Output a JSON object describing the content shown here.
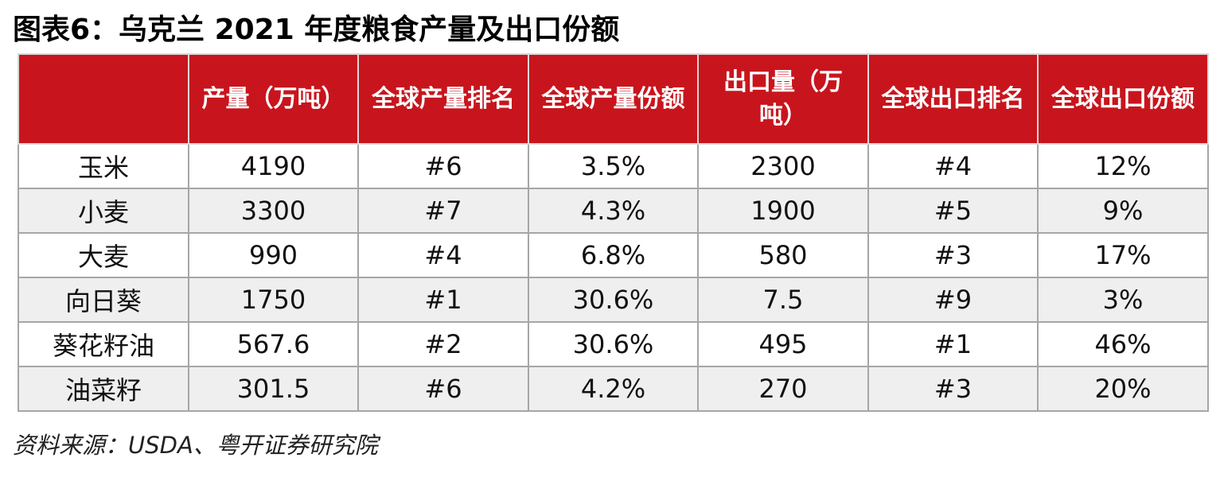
{
  "title": "图表6：乌克兰 2021 年度粮食产量及出口份额",
  "table": {
    "headers": [
      "",
      "产量（万吨）",
      "全球产量排名",
      "全球产量份额",
      "出口量（万吨）",
      "全球出口排名",
      "全球出口份额"
    ],
    "rows": [
      [
        "玉米",
        "4190",
        "#6",
        "3.5%",
        "2300",
        "#4",
        "12%"
      ],
      [
        "小麦",
        "3300",
        "#7",
        "4.3%",
        "1900",
        "#5",
        "9%"
      ],
      [
        "大麦",
        "990",
        "#4",
        "6.8%",
        "580",
        "#3",
        "17%"
      ],
      [
        "向日葵",
        "1750",
        "#1",
        "30.6%",
        "7.5",
        "#9",
        "3%"
      ],
      [
        "葵花籽油",
        "567.6",
        "#2",
        "30.6%",
        "495",
        "#1",
        "46%"
      ],
      [
        "油菜籽",
        "301.5",
        "#6",
        "4.2%",
        "270",
        "#3",
        "20%"
      ]
    ]
  },
  "source": "资料来源：USDA、粤开证券研究院",
  "colors": {
    "header_bg": "#c8151d",
    "header_text": "#ffffff",
    "alt_row_bg": "#efefef",
    "border": "#a6a6a6"
  }
}
